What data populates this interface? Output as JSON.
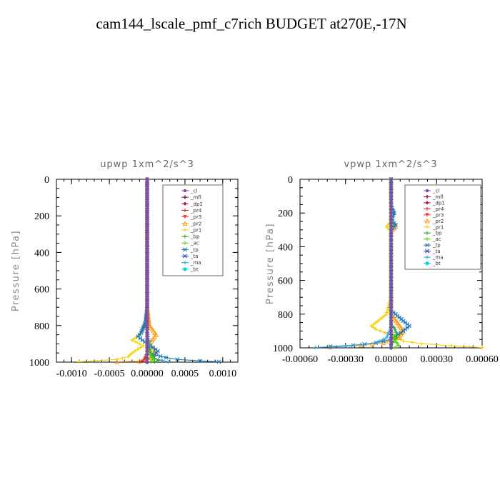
{
  "figure": {
    "title": "cam144_lscale_pmf_c7rich  BUDGET at270E,-17N"
  },
  "colors": {
    "cl": "#8e44ad",
    "mfl": "#8b1a4a",
    "dp1": "#b0164a",
    "pr4": "#d62728",
    "pr3": "#ff3b30",
    "pr2": "#ff9f1a",
    "pr1": "#f5d000",
    "bp": "#2ca02c",
    "ac": "#55d400",
    "tp": "#1f77b4",
    "ta": "#3040c0",
    "ma": "#2aa6e0",
    "bt": "#00d8e8"
  },
  "chart_data": [
    {
      "type": "line",
      "title": "upwp   1xm^2/s^3",
      "ylabel": "Pressure [hPa]",
      "xlabel": "",
      "xlim": [
        -0.0012,
        0.0012
      ],
      "ylim": [
        1000,
        0
      ],
      "xticks": [
        -0.001,
        -0.0005,
        0,
        0.0005,
        0.001
      ],
      "xtick_labels": [
        "-0.0010",
        "-0.0005",
        "0.00000",
        "0.0005",
        "0.0010"
      ],
      "yticks": [
        0,
        200,
        400,
        600,
        800,
        1000
      ],
      "ytick_labels": [
        "0",
        "200",
        "400",
        "600",
        "800",
        "1000"
      ],
      "legend": {
        "position": "top-right",
        "entries": [
          "_cl",
          "_mfl",
          "_dp1",
          "_pr4",
          "_pr3",
          "_pr2",
          "_pr1",
          "_bp",
          "_ac",
          "_tp",
          "_ta",
          "_ma",
          "_bt"
        ]
      },
      "series": [
        {
          "key": "pr1",
          "points": [
            [
              0,
              0
            ],
            [
              0,
              300
            ],
            [
              0,
              700
            ],
            [
              -2e-05,
              800
            ],
            [
              -0.0001,
              850
            ],
            [
              -0.0002,
              880
            ],
            [
              -0.0001,
              900
            ],
            [
              -5e-05,
              910
            ],
            [
              -0.0002,
              950
            ],
            [
              -0.00025,
              970
            ],
            [
              -0.0004,
              985
            ],
            [
              -0.0009,
              998
            ]
          ]
        },
        {
          "key": "pr2",
          "points": [
            [
              0,
              0
            ],
            [
              0,
              700
            ],
            [
              3e-05,
              800
            ],
            [
              0.00012,
              850
            ],
            [
              3e-05,
              900
            ],
            [
              0.0001,
              930
            ],
            [
              8e-05,
              960
            ],
            [
              3e-05,
              985
            ],
            [
              -0.0001,
              995
            ],
            [
              -0.0004,
              998
            ]
          ]
        },
        {
          "key": "tp",
          "points": [
            [
              0,
              0
            ],
            [
              0,
              700
            ],
            [
              -2e-05,
              780
            ],
            [
              -8e-05,
              840
            ],
            [
              -0.00012,
              860
            ],
            [
              -6e-05,
              880
            ],
            [
              0,
              900
            ],
            [
              8e-05,
              920
            ],
            [
              0.00014,
              940
            ],
            [
              0.0001,
              960
            ],
            [
              0.00025,
              975
            ],
            [
              0.0004,
              985
            ],
            [
              0.0007,
              993
            ],
            [
              0.00095,
              998
            ]
          ]
        },
        {
          "key": "ma",
          "points": [
            [
              0,
              0
            ],
            [
              0,
              820
            ],
            [
              3e-05,
              900
            ],
            [
              5e-05,
              950
            ],
            [
              0.0001,
              980
            ],
            [
              0.0002,
              990
            ],
            [
              0.00028,
              998
            ]
          ]
        },
        {
          "key": "bp",
          "points": [
            [
              0,
              0
            ],
            [
              0,
              850
            ],
            [
              2e-05,
              920
            ],
            [
              6e-05,
              960
            ],
            [
              0.0001,
              980
            ],
            [
              0.00015,
              990
            ],
            [
              0.0001,
              998
            ]
          ]
        },
        {
          "key": "ac",
          "points": [
            [
              0,
              0
            ],
            [
              0,
              900
            ],
            [
              4e-05,
              960
            ],
            [
              8e-05,
              985
            ],
            [
              5e-05,
              998
            ]
          ]
        },
        {
          "key": "pr4",
          "points": [
            [
              0,
              0
            ],
            [
              0,
              950
            ],
            [
              -4e-05,
              985
            ],
            [
              -8e-05,
              995
            ],
            [
              -2e-05,
              998
            ]
          ]
        },
        {
          "key": "bt",
          "points": [
            [
              0,
              0
            ],
            [
              0,
              1000
            ]
          ]
        },
        {
          "key": "mfl",
          "points": [
            [
              0,
              0
            ],
            [
              0,
              1000
            ]
          ]
        },
        {
          "key": "dp1",
          "points": [
            [
              0,
              0
            ],
            [
              0,
              1000
            ]
          ]
        },
        {
          "key": "cl",
          "points": [
            [
              0,
              0
            ],
            [
              0,
              1000
            ]
          ]
        }
      ]
    },
    {
      "type": "line",
      "title": "vpwp   1xm^2/s^3",
      "ylabel": "Pressure [hPa]",
      "xlabel": "",
      "xlim": [
        -0.0006,
        0.0006
      ],
      "ylim": [
        1000,
        0
      ],
      "xticks": [
        -0.0006,
        -0.0003,
        0,
        0.0003,
        0.0006
      ],
      "xtick_labels": [
        "-0.00060",
        "-0.00030",
        "0.00000",
        "0.00030",
        "0.00060"
      ],
      "yticks": [
        0,
        200,
        400,
        600,
        800,
        1000
      ],
      "ytick_labels": [
        "0",
        "200",
        "400",
        "600",
        "800",
        "1000"
      ],
      "legend": {
        "position": "top-right",
        "entries": [
          "_cl",
          "_mfl",
          "_dp1",
          "_pr4",
          "_pr3",
          "_pr2",
          "_pr1",
          "_bp",
          "_ac",
          "_tp",
          "_ta",
          "_ma",
          "_bt"
        ]
      },
      "series": [
        {
          "key": "pr1",
          "points": [
            [
              0,
              0
            ],
            [
              0,
              250
            ],
            [
              -3e-05,
              280
            ],
            [
              0,
              310
            ],
            [
              0,
              700
            ],
            [
              -3e-05,
              800
            ],
            [
              -0.0001,
              850
            ],
            [
              -0.00013,
              870
            ],
            [
              -0.0001,
              890
            ],
            [
              -4e-05,
              910
            ],
            [
              3e-05,
              930
            ],
            [
              8e-05,
              960
            ],
            [
              0.0002,
              975
            ],
            [
              0.0004,
              988
            ],
            [
              0.0006,
              998
            ]
          ]
        },
        {
          "key": "pr2",
          "points": [
            [
              0,
              0
            ],
            [
              0,
              250
            ],
            [
              3e-05,
              280
            ],
            [
              0,
              310
            ],
            [
              0,
              800
            ],
            [
              5e-05,
              860
            ],
            [
              8e-05,
              900
            ],
            [
              5e-05,
              940
            ],
            [
              -5e-05,
              970
            ],
            [
              -0.0002,
              985
            ],
            [
              -0.0004,
              995
            ]
          ]
        },
        {
          "key": "tp",
          "points": [
            [
              0,
              0
            ],
            [
              0,
              160
            ],
            [
              2e-05,
              200
            ],
            [
              0,
              240
            ],
            [
              3e-05,
              270
            ],
            [
              0,
              300
            ],
            [
              0,
              780
            ],
            [
              3e-05,
              800
            ],
            [
              8e-05,
              840
            ],
            [
              0.00012,
              870
            ],
            [
              8e-05,
              900
            ],
            [
              3e-05,
              930
            ],
            [
              0,
              950
            ],
            [
              -0.0001,
              970
            ],
            [
              -0.00025,
              985
            ],
            [
              -0.0004,
              992
            ]
          ]
        },
        {
          "key": "ma",
          "points": [
            [
              0,
              0
            ],
            [
              0,
              880
            ],
            [
              -3e-05,
              940
            ],
            [
              -0.0001,
              970
            ],
            [
              -0.0003,
              990
            ],
            [
              -0.0005,
              998
            ]
          ]
        },
        {
          "key": "bp",
          "points": [
            [
              0,
              0
            ],
            [
              0,
              860
            ],
            [
              2e-05,
              880
            ],
            [
              4e-05,
              920
            ],
            [
              3e-05,
              950
            ],
            [
              0,
              980
            ],
            [
              0,
              1000
            ]
          ]
        },
        {
          "key": "ac",
          "points": [
            [
              0,
              0
            ],
            [
              0,
              900
            ],
            [
              3e-05,
              960
            ],
            [
              5e-05,
              985
            ],
            [
              2e-05,
              998
            ]
          ]
        },
        {
          "key": "bt",
          "points": [
            [
              0,
              0
            ],
            [
              0,
              1000
            ]
          ]
        },
        {
          "key": "mfl",
          "points": [
            [
              0,
              0
            ],
            [
              0,
              1000
            ]
          ]
        },
        {
          "key": "dp1",
          "points": [
            [
              0,
              0
            ],
            [
              0,
              1000
            ]
          ]
        },
        {
          "key": "cl",
          "points": [
            [
              0,
              0
            ],
            [
              0,
              1000
            ]
          ]
        }
      ]
    }
  ]
}
